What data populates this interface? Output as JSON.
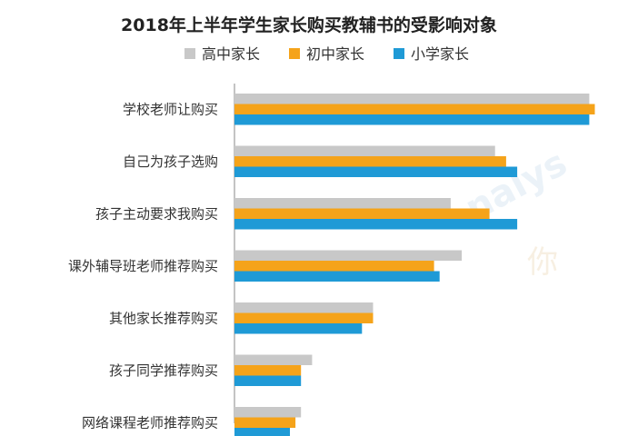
{
  "chart_data": {
    "type": "bar",
    "orientation": "horizontal",
    "title": "2018年上半年学生家长购买教辅书的受影响对象",
    "categories": [
      "学校老师让购买",
      "自己为孩子选购",
      "孩子主动要求我购买",
      "课外辅导班老师推荐购买",
      "其他家长推荐购买",
      "孩子同学推荐购买",
      "网络课程老师推荐购买"
    ],
    "series": [
      {
        "name": "高中家长",
        "color": "#c8c8c8",
        "values": [
          64,
          47,
          39,
          41,
          25,
          14,
          12
        ]
      },
      {
        "name": "初中家长",
        "color": "#f5a31a",
        "values": [
          65,
          49,
          46,
          36,
          25,
          12,
          11
        ]
      },
      {
        "name": "小学家长",
        "color": "#1f9ad6",
        "values": [
          64,
          51,
          51,
          37,
          23,
          12,
          10
        ]
      }
    ],
    "xlim": [
      0,
      70
    ],
    "grid": false,
    "legend_position": "top"
  },
  "watermark": {
    "text": "nalys",
    "text2": "你"
  }
}
